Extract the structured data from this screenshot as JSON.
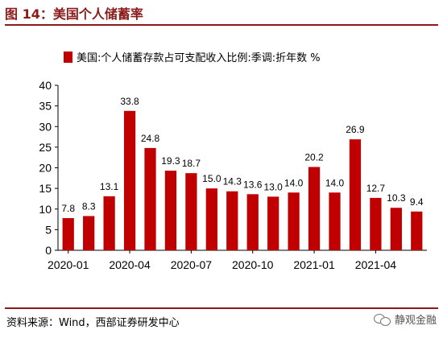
{
  "figure": {
    "title": "图 14：美国个人储蓄率",
    "source": "资料来源：Wind，西部证券研发中心",
    "watermark": "静观金融"
  },
  "colors": {
    "accent": "#8b1a1a",
    "bar": "#c00000",
    "axis": "#000000"
  },
  "chart_data": {
    "type": "bar",
    "title": "",
    "categories": [
      "2020-01",
      "2020-02",
      "2020-03",
      "2020-04",
      "2020-05",
      "2020-06",
      "2020-07",
      "2020-08",
      "2020-09",
      "2020-10",
      "2020-11",
      "2020-12",
      "2021-01",
      "2021-02",
      "2021-03",
      "2021-04",
      "2021-05",
      "2021-06"
    ],
    "tick_labels": [
      "2020-01",
      "",
      "",
      "2020-04",
      "",
      "",
      "2020-07",
      "",
      "",
      "2020-10",
      "",
      "",
      "2021-01",
      "",
      "",
      "2021-04",
      "",
      ""
    ],
    "series": [
      {
        "name": "美国:个人储蓄存款占可支配收入比例:季调:折年数 %",
        "values": [
          7.8,
          8.3,
          13.1,
          33.8,
          24.8,
          19.3,
          18.7,
          15.0,
          14.3,
          13.6,
          13.0,
          14.0,
          20.2,
          14.0,
          26.9,
          12.7,
          10.3,
          9.4
        ],
        "labels": [
          "7.8",
          "8.3",
          "13.1",
          "33.8",
          "24.8",
          "19.3",
          "18.7",
          "15.0",
          "14.3",
          "13.6",
          "13.0",
          "14.0",
          "20.2",
          "14.0",
          "26.9",
          "12.7",
          "10.3",
          "9.4"
        ]
      }
    ],
    "ylim": [
      0,
      40
    ],
    "yticks": [
      0,
      5,
      10,
      15,
      20,
      25,
      30,
      35,
      40
    ],
    "xlabel": "",
    "ylabel": "",
    "legend": "top-left",
    "grid": false
  }
}
